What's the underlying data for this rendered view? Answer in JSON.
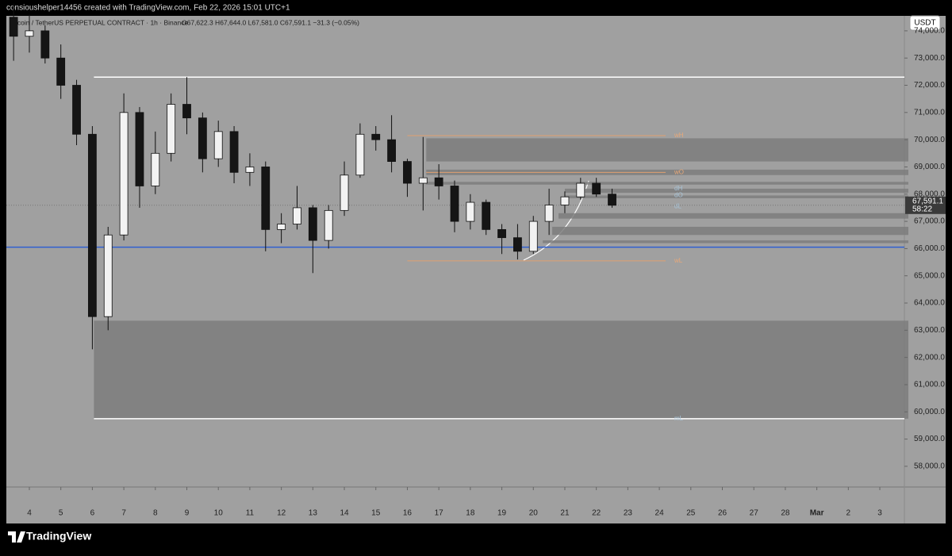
{
  "header": {
    "credit": "consioushelper14456 created with TradingView.com, Feb 22, 2026 15:01 UTC+1"
  },
  "chart_data": {
    "type": "candlestick",
    "title": "Bitcoin / TetherUS PERPETUAL CONTRACT · 1h · Binance",
    "ohlc_label": "O67,622.3 H67,644.0 L67,581.0 C67,591.1 −31.3 (−0.05%)",
    "currency": "USDT",
    "x": [
      3.5,
      4,
      4.5,
      5,
      5.5,
      6,
      6.5,
      7,
      7.5,
      8,
      8.5,
      9,
      9.5,
      10,
      10.5,
      11,
      11.5,
      12,
      12.5,
      13,
      13.5,
      14,
      14.5,
      15,
      15.5,
      16,
      16.5,
      17,
      17.5,
      18,
      18.5,
      19,
      19.5,
      20,
      20.5,
      21,
      21.5,
      22,
      22.5
    ],
    "open": [
      74500,
      73800,
      74000,
      73000,
      72000,
      70200,
      63500,
      66500,
      71000,
      68300,
      69500,
      71300,
      70800,
      69300,
      70300,
      68800,
      69000,
      66700,
      66900,
      67500,
      66300,
      67400,
      68700,
      70200,
      70000,
      69200,
      68400,
      68600,
      68300,
      67000,
      67700,
      66700,
      66400,
      65900,
      67000,
      67600,
      67900,
      68400,
      68000
    ],
    "high": [
      75000,
      74600,
      74200,
      73500,
      72200,
      70500,
      66800,
      71700,
      71200,
      70300,
      71700,
      72300,
      71000,
      70700,
      70500,
      69500,
      69200,
      67300,
      68300,
      67600,
      67600,
      69200,
      70600,
      70500,
      70900,
      69300,
      70100,
      69100,
      68500,
      68000,
      67800,
      66900,
      66900,
      67200,
      68200,
      68100,
      68600,
      68600,
      68200
    ],
    "low": [
      72900,
      73200,
      72800,
      71500,
      69800,
      62300,
      63000,
      66300,
      67500,
      68000,
      69200,
      70200,
      68800,
      69000,
      68400,
      68300,
      65900,
      66200,
      66700,
      65100,
      66000,
      67200,
      68600,
      69600,
      68800,
      67900,
      67400,
      67800,
      66600,
      66700,
      66500,
      65800,
      65600,
      65800,
      66500,
      67300,
      67800,
      67900,
      67500
    ],
    "close": [
      73800,
      74000,
      73000,
      72000,
      70200,
      63500,
      66500,
      71000,
      68300,
      69500,
      71300,
      70800,
      69300,
      70300,
      68800,
      69000,
      66700,
      66900,
      67500,
      66300,
      67400,
      68700,
      70200,
      70000,
      69200,
      68400,
      68600,
      68300,
      67000,
      67700,
      66700,
      66400,
      65900,
      67000,
      67600,
      67900,
      68400,
      68000,
      67591.1
    ],
    "up_color": "#f2f2f2",
    "down_color": "#151515",
    "xlim": [
      3.27,
      31.78
    ],
    "xticks": [
      4,
      5,
      6,
      7,
      8,
      9,
      10,
      11,
      12,
      13,
      14,
      15,
      16,
      17,
      18,
      19,
      20,
      21,
      22,
      23,
      24,
      25,
      26,
      27,
      28,
      {
        "value": 29,
        "label": "Mar"
      },
      {
        "value": 30,
        "label": "2"
      },
      {
        "value": 31,
        "label": "3"
      }
    ],
    "ylim": [
      57240,
      74550
    ],
    "yticks": [
      {
        "value": 58000,
        "label": "58,000.0"
      },
      {
        "value": 59000,
        "label": "59,000.0"
      },
      {
        "value": 60000,
        "label": "60,000.0"
      },
      {
        "value": 61000,
        "label": "61,000.0"
      },
      {
        "value": 62000,
        "label": "62,000.0"
      },
      {
        "value": 63000,
        "label": "63,000.0"
      },
      {
        "value": 64000,
        "label": "64,000.0"
      },
      {
        "value": 65000,
        "label": "65,000.0"
      },
      {
        "value": 66000,
        "label": "66,000.0"
      },
      {
        "value": 67000,
        "label": "67,000.0"
      },
      {
        "value": 68000,
        "label": "68,000.0"
      },
      {
        "value": 69000,
        "label": "69,000.0"
      },
      {
        "value": 70000,
        "label": "70,000.0"
      },
      {
        "value": 71000,
        "label": "71,000.0"
      },
      {
        "value": 72000,
        "label": "72,000.0"
      },
      {
        "value": 73000,
        "label": "73,000.0"
      },
      {
        "value": 74000,
        "label": "74,000.0"
      }
    ],
    "last_price": {
      "value": 67591.1,
      "label": "67,591.1"
    },
    "countdown": "58:22",
    "levels": [
      {
        "value": 72300,
        "x_start": 6.05,
        "color": "#ffffff"
      },
      {
        "value": 66050,
        "x_start": 3.27,
        "color": "#2f5fd0"
      },
      {
        "value": 59750,
        "x_start": 6.05,
        "color": "#ffffff"
      },
      {
        "value": 70150,
        "x_start": 16,
        "x_end": 24.2,
        "color": "#e0a070"
      },
      {
        "value": 68800,
        "x_start": 16.6,
        "x_end": 24.2,
        "color": "#e0a070"
      },
      {
        "value": 65550,
        "x_start": 16,
        "x_end": 24.2,
        "color": "#e0a070"
      }
    ],
    "zones": [
      {
        "low": 69200,
        "high": 70050,
        "x_start": 16.6
      },
      {
        "low": 68700,
        "high": 68900,
        "x_start": 16.6
      },
      {
        "low": 68350,
        "high": 68450,
        "x_start": 16.6
      },
      {
        "low": 68050,
        "high": 68200,
        "x_start": 21
      },
      {
        "low": 67850,
        "high": 67950,
        "x_start": 21
      },
      {
        "low": 67100,
        "high": 67300,
        "x_start": 20.8
      },
      {
        "low": 66500,
        "high": 66800,
        "x_start": 20.6
      },
      {
        "low": 66200,
        "high": 66300,
        "x_start": 20.3
      },
      {
        "low": 59750,
        "high": 63350,
        "x_start": 6.05
      }
    ],
    "level_labels": [
      {
        "label": "wH",
        "value": 70150,
        "color": "#e8a878"
      },
      {
        "label": "wO",
        "value": 68800,
        "color": "#e8a878"
      },
      {
        "label": "dH",
        "value": 68200,
        "color": "#a8c4d8"
      },
      {
        "label": "dO",
        "value": 67950,
        "color": "#a8c4d8"
      },
      {
        "label": "dL",
        "value": 67550,
        "color": "#a8c4d8"
      },
      {
        "label": "wL",
        "value": 65550,
        "color": "#e8a878"
      },
      {
        "label": "mL",
        "value": 59750,
        "color": "#a8c4d8"
      }
    ]
  },
  "footer": {
    "brand": "TradingView"
  }
}
